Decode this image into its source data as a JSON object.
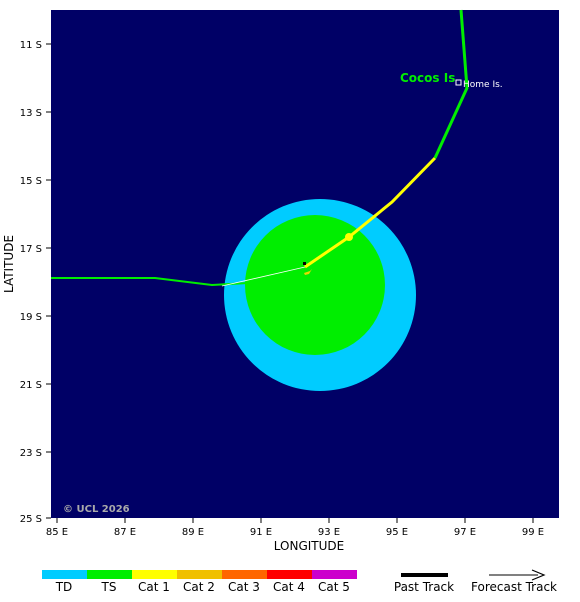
{
  "map": {
    "background_color": "#000066",
    "lon_ticks": [
      "85 E",
      "87 E",
      "89 E",
      "91 E",
      "93 E",
      "95 E",
      "97 E",
      "99 E"
    ],
    "lat_ticks": [
      "11 S",
      "13 S",
      "15 S",
      "17 S",
      "19 S",
      "21 S",
      "23 S",
      "25 S"
    ],
    "x_axis_label": "LONGITUDE",
    "y_axis_label": "LATITUDE",
    "copyright": "© UCL 2026",
    "place_labels": {
      "cocos": "Cocos Is",
      "home": "Home Is."
    },
    "wind_field": {
      "gale_color": "#00ccff",
      "storm_color": "#00ee00"
    },
    "track_colors": {
      "ts": "#00ee00",
      "cat1": "#ffff00",
      "cat1_dark": "#e8d800"
    }
  },
  "legend": {
    "categories": [
      {
        "label": "TD",
        "color": "#00ccff"
      },
      {
        "label": "TS",
        "color": "#00ee00"
      },
      {
        "label": "Cat 1",
        "color": "#ffff00"
      },
      {
        "label": "Cat 2",
        "color": "#f0c000"
      },
      {
        "label": "Cat 3",
        "color": "#ff6600"
      },
      {
        "label": "Cat 4",
        "color": "#ff0000"
      },
      {
        "label": "Cat 5",
        "color": "#cc00cc"
      }
    ],
    "past_track_label": "Past Track",
    "forecast_track_label": "Forecast Track"
  }
}
